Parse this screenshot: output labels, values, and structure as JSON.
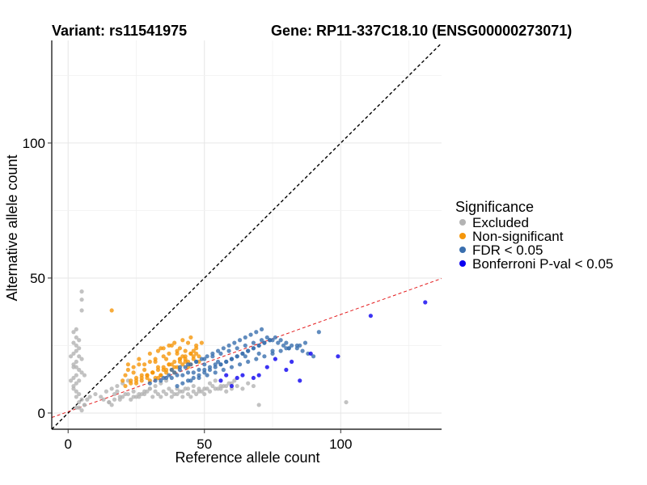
{
  "chart_data": {
    "type": "scatter",
    "title_left": "Variant: rs11541975",
    "title_right": "Gene: RP11-337C18.10 (ENSG00000273071)",
    "xlabel": "Reference allele count",
    "ylabel": "Alternative allele count",
    "xlim": [
      -6,
      137
    ],
    "ylim": [
      -6,
      138
    ],
    "xticks": [
      0,
      50,
      100
    ],
    "yticks": [
      0,
      50,
      100
    ],
    "grid": true,
    "reference_lines": [
      {
        "name": "identity",
        "slope": 1,
        "intercept": 0,
        "color": "#000000",
        "style": "dashed"
      },
      {
        "name": "fit",
        "slope": 0.36,
        "intercept": 0.5,
        "color": "#e41a1c",
        "style": "dashed"
      }
    ],
    "legend": {
      "title": "Significance",
      "position": "right",
      "entries": [
        {
          "label": "Excluded",
          "color": "#b3b3b3"
        },
        {
          "label": "Non-significant",
          "color": "#f5960a"
        },
        {
          "label": "FDR < 0.05",
          "color": "#3a6fae"
        },
        {
          "label": "Bonferroni P-val < 0.05",
          "color": "#0b00f0"
        }
      ]
    },
    "series": [
      {
        "name": "Excluded",
        "color": "#b3b3b3",
        "x": [
          5,
          5,
          5,
          3,
          2,
          3,
          4,
          2,
          3,
          4,
          3,
          2,
          1,
          4,
          5,
          3,
          2,
          2,
          3,
          4,
          5,
          6,
          3,
          2,
          1,
          4,
          3,
          2,
          2,
          3,
          4,
          3,
          5,
          4,
          6,
          3,
          4,
          5,
          6,
          7,
          8,
          10,
          12,
          13,
          15,
          16,
          17,
          18,
          19,
          20,
          22,
          24,
          26,
          28,
          30,
          32,
          34,
          36,
          38,
          40,
          42,
          44,
          46,
          48,
          50,
          52,
          54,
          56,
          58,
          60,
          62,
          64,
          66,
          68,
          14,
          16,
          18,
          20,
          22,
          24,
          26,
          28,
          30,
          32,
          34,
          36,
          38,
          40,
          42,
          44,
          46,
          48,
          50,
          52,
          54,
          56,
          58,
          60,
          15,
          17,
          19,
          21,
          23,
          25,
          27,
          29,
          31,
          33,
          35,
          37,
          39,
          41,
          43,
          45,
          47,
          49,
          51,
          53,
          55,
          57,
          59,
          61,
          70,
          102
        ],
        "y": [
          42,
          45,
          38,
          31,
          30,
          28,
          27,
          26,
          25,
          24,
          23,
          22,
          21,
          21,
          20,
          19,
          18,
          17,
          17,
          16,
          15,
          14,
          14,
          13,
          12,
          12,
          11,
          10,
          9,
          8,
          7,
          6,
          5,
          4,
          3,
          2,
          2,
          1,
          3,
          5,
          6,
          7,
          6,
          5,
          4,
          3,
          7,
          8,
          5,
          6,
          7,
          8,
          6,
          7,
          9,
          8,
          6,
          7,
          8,
          9,
          6,
          7,
          8,
          9,
          7,
          8,
          9,
          10,
          8,
          9,
          10,
          9,
          11,
          10,
          8,
          9,
          10,
          11,
          12,
          6,
          7,
          8,
          9,
          10,
          11,
          12,
          6,
          7,
          8,
          9,
          10,
          8,
          9,
          11,
          12,
          9,
          10,
          11,
          4,
          5,
          6,
          7,
          5,
          6,
          7,
          8,
          6,
          7,
          8,
          9,
          7,
          8,
          9,
          6,
          7,
          8,
          9,
          10,
          9,
          10,
          11,
          12,
          3,
          4
        ]
      },
      {
        "name": "Non-significant",
        "color": "#f5960a",
        "x": [
          16,
          20,
          21,
          22,
          23,
          24,
          25,
          26,
          27,
          28,
          29,
          30,
          31,
          32,
          33,
          34,
          35,
          36,
          37,
          38,
          39,
          40,
          41,
          42,
          43,
          44,
          45,
          46,
          47,
          48,
          22,
          24,
          26,
          28,
          30,
          32,
          34,
          36,
          38,
          40,
          42,
          44,
          46,
          25,
          27,
          29,
          31,
          33,
          35,
          37,
          39,
          41,
          43,
          45,
          47,
          30,
          32,
          34,
          36,
          38,
          40,
          42,
          44,
          46,
          48,
          21,
          23,
          25,
          27,
          29,
          31,
          33,
          35,
          37,
          39,
          41,
          43,
          45,
          33,
          35,
          37,
          39,
          41,
          43,
          45,
          47,
          49
        ],
        "y": [
          38,
          12,
          14,
          16,
          12,
          15,
          13,
          18,
          14,
          16,
          13,
          19,
          15,
          20,
          17,
          14,
          21,
          16,
          22,
          18,
          15,
          23,
          19,
          27,
          20,
          17,
          28,
          21,
          24,
          19,
          18,
          17,
          20,
          18,
          22,
          19,
          24,
          20,
          25,
          22,
          21,
          26,
          23,
          11,
          12,
          14,
          15,
          13,
          16,
          18,
          17,
          20,
          19,
          18,
          22,
          12,
          13,
          14,
          15,
          16,
          17,
          18,
          19,
          20,
          21,
          10,
          11,
          12,
          13,
          14,
          15,
          16,
          17,
          18,
          19,
          20,
          21,
          22,
          23,
          24,
          25,
          26,
          24,
          23,
          22,
          25,
          26
        ]
      },
      {
        "name": "FDR < 0.05",
        "color": "#3a6fae",
        "x": [
          30,
          32,
          34,
          36,
          38,
          40,
          42,
          44,
          46,
          48,
          50,
          52,
          54,
          56,
          58,
          60,
          62,
          64,
          66,
          68,
          70,
          72,
          74,
          76,
          78,
          80,
          82,
          84,
          86,
          88,
          90,
          92,
          35,
          37,
          39,
          41,
          43,
          45,
          47,
          49,
          51,
          53,
          55,
          57,
          59,
          61,
          63,
          65,
          67,
          69,
          71,
          73,
          75,
          77,
          79,
          81,
          40,
          42,
          44,
          46,
          48,
          50,
          52,
          54,
          56,
          58,
          60,
          62,
          64,
          66,
          68,
          70,
          72,
          74,
          38,
          41,
          44,
          47,
          50,
          53,
          56,
          59,
          62,
          65,
          68,
          71,
          45,
          48,
          51,
          54,
          57,
          60,
          63,
          66,
          69,
          72,
          75,
          78,
          81,
          84,
          87,
          50,
          55,
          60,
          65,
          70,
          75,
          80,
          85
        ],
        "y": [
          11,
          12,
          12,
          13,
          13,
          14,
          14,
          15,
          15,
          16,
          16,
          17,
          18,
          18,
          19,
          20,
          21,
          22,
          23,
          24,
          25,
          26,
          27,
          28,
          27,
          26,
          25,
          24,
          23,
          22,
          21,
          30,
          13,
          14,
          15,
          16,
          17,
          18,
          19,
          20,
          21,
          22,
          23,
          24,
          25,
          26,
          27,
          28,
          29,
          30,
          31,
          28,
          27,
          26,
          25,
          24,
          10,
          11,
          12,
          13,
          14,
          15,
          16,
          17,
          18,
          19,
          20,
          21,
          22,
          23,
          24,
          25,
          26,
          27,
          16,
          17,
          18,
          19,
          20,
          21,
          22,
          23,
          24,
          25,
          26,
          27,
          12,
          13,
          14,
          15,
          16,
          17,
          18,
          19,
          20,
          21,
          22,
          23,
          24,
          25,
          26,
          18,
          19,
          20,
          21,
          22,
          23,
          24,
          25
        ]
      },
      {
        "name": "Bonferroni P-val < 0.05",
        "color": "#0b00f0",
        "x": [
          131,
          111,
          99,
          85,
          80,
          76,
          70,
          68,
          64,
          60,
          73,
          82,
          89,
          56,
          58,
          62
        ],
        "y": [
          41,
          36,
          21,
          12,
          16,
          20,
          14,
          13,
          14,
          10,
          17,
          19,
          22,
          12,
          14,
          13
        ]
      }
    ]
  }
}
